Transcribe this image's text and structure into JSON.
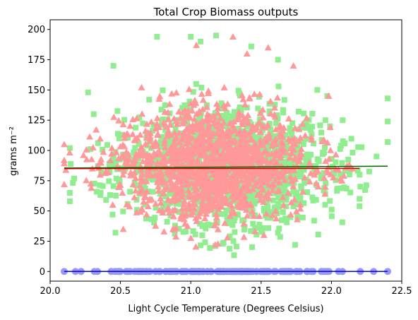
{
  "chart_data": {
    "type": "scatter",
    "title": "Total Crop Biomass outputs",
    "xlabel": "Light Cycle Temperature (Degrees Celsius)",
    "ylabel": "grams m⁻²",
    "xlim": [
      20.0,
      22.5
    ],
    "ylim": [
      -8,
      208
    ],
    "xticks": [
      20.0,
      20.5,
      21.0,
      21.5,
      22.0,
      22.5
    ],
    "xtick_labels": [
      "20.0",
      "20.5",
      "21.0",
      "21.5",
      "22.0",
      "22.5"
    ],
    "yticks": [
      0,
      25,
      50,
      75,
      100,
      125,
      150,
      175,
      200
    ],
    "ytick_labels": [
      "0",
      "25",
      "50",
      "75",
      "100",
      "125",
      "150",
      "175",
      "200"
    ],
    "grid": false,
    "legend": "none",
    "series": [
      {
        "marker": "square",
        "color": "#90ee90",
        "trend_color": "#006400",
        "x_range": [
          20.1,
          22.4
        ],
        "y_center": 86,
        "y_spread": 150,
        "trend": [
          [
            20.1,
            85.5
          ],
          [
            22.4,
            87.0
          ]
        ],
        "outliers": [
          [
            20.76,
            194
          ],
          [
            21.0,
            194
          ],
          [
            21.07,
            190
          ],
          [
            21.18,
            195
          ],
          [
            21.43,
            186
          ],
          [
            21.62,
            175
          ],
          [
            20.45,
            170
          ],
          [
            21.99,
            120
          ],
          [
            22.4,
            143
          ],
          [
            22.4,
            124
          ],
          [
            22.4,
            107
          ],
          [
            22.2,
            80
          ],
          [
            22.2,
            60
          ],
          [
            22.2,
            54
          ],
          [
            20.14,
            102
          ],
          [
            20.14,
            65
          ],
          [
            20.14,
            58
          ],
          [
            20.27,
            148
          ],
          [
            20.31,
            130
          ],
          [
            21.9,
            150
          ],
          [
            21.97,
            145
          ],
          [
            22.08,
            125
          ]
        ]
      },
      {
        "marker": "triangle",
        "color": "#ff9999",
        "trend_color": "#cc0000",
        "x_range": [
          20.1,
          22.2
        ],
        "y_center": 86,
        "y_spread": 140,
        "trend": [
          [
            20.1,
            85.0
          ],
          [
            22.2,
            85.2
          ]
        ],
        "outliers": [
          [
            21.3,
            194
          ],
          [
            21.55,
            185
          ],
          [
            21.4,
            180
          ],
          [
            21.04,
            187
          ],
          [
            20.65,
            152
          ],
          [
            21.73,
            170
          ],
          [
            20.1,
            105
          ],
          [
            20.1,
            92
          ],
          [
            20.1,
            72
          ],
          [
            20.52,
            35
          ],
          [
            21.26,
            28
          ],
          [
            21.52,
            30
          ],
          [
            22.05,
            84
          ],
          [
            21.98,
            145
          ],
          [
            20.3,
            85
          ]
        ]
      },
      {
        "marker": "circle",
        "color": "#9999ee",
        "trend_color": "#0000ff",
        "x_range": [
          20.1,
          22.4
        ],
        "y_center": 0,
        "y_spread": 0,
        "trend": [
          [
            20.1,
            0
          ],
          [
            22.4,
            0
          ]
        ],
        "outliers": [
          [
            20.1,
            0
          ],
          [
            20.18,
            0
          ],
          [
            20.22,
            0
          ],
          [
            22.3,
            0
          ],
          [
            22.4,
            0
          ]
        ]
      }
    ]
  }
}
